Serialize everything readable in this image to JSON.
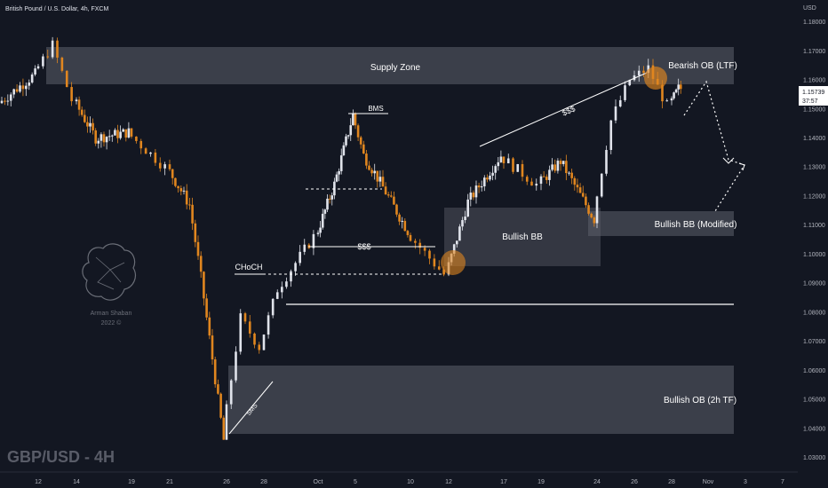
{
  "header": {
    "title": "British Pound / U.S. Dollar, 4h, FXCM",
    "currency": "USD"
  },
  "watermark": {
    "symbol": "GBP/USD - 4H",
    "logo_name": "Arman Shaban",
    "logo_year": "2022 ©"
  },
  "price_label": {
    "price": "1.15739",
    "countdown": "37:57",
    "value": 1.15739
  },
  "colors": {
    "background": "#131722",
    "bull": "#e0e3eb",
    "bear": "#e0861f",
    "zone": "#5d606b",
    "axis_text": "#b2b5be",
    "highlight": "#e0861f"
  },
  "chart_data": {
    "type": "candlestick",
    "title": "British Pound / U.S. Dollar, 4h, FXCM",
    "xlabel": "",
    "ylabel": "",
    "y_range": [
      1.025,
      1.1875
    ],
    "grid": false,
    "y_ticks": [
      "1.18000",
      "1.17000",
      "1.16000",
      "1.15000",
      "1.14000",
      "1.13000",
      "1.12000",
      "1.11000",
      "1.10000",
      "1.09000",
      "1.08000",
      "1.07000",
      "1.06000",
      "1.05000",
      "1.04000",
      "1.03000"
    ],
    "x_ticks": [
      "12",
      "14",
      "19",
      "21",
      "26",
      "28",
      "Oct",
      "5",
      "10",
      "12",
      "17",
      "19",
      "24",
      "26",
      "28",
      "Nov",
      "3",
      "7"
    ],
    "price_path": [
      {
        "date": "Sep 09",
        "price": 1.152
      },
      {
        "date": "Sep 12",
        "price": 1.162
      },
      {
        "date": "Sep 13",
        "price": 1.172
      },
      {
        "date": "Sep 14",
        "price": 1.153
      },
      {
        "date": "Sep 16",
        "price": 1.14
      },
      {
        "date": "Sep 19",
        "price": 1.142
      },
      {
        "date": "Sep 21",
        "price": 1.13
      },
      {
        "date": "Sep 23",
        "price": 1.117
      },
      {
        "date": "Sep 24",
        "price": 1.092
      },
      {
        "date": "Sep 26",
        "price": 1.036
      },
      {
        "date": "Sep 27",
        "price": 1.078
      },
      {
        "date": "Sep 28",
        "price": 1.068
      },
      {
        "date": "Sep 29",
        "price": 1.088
      },
      {
        "date": "Oct 03",
        "price": 1.124
      },
      {
        "date": "Oct 05",
        "price": 1.148
      },
      {
        "date": "Oct 06",
        "price": 1.134
      },
      {
        "date": "Oct 07",
        "price": 1.128
      },
      {
        "date": "Oct 10",
        "price": 1.108
      },
      {
        "date": "Oct 12",
        "price": 1.093
      },
      {
        "date": "Oct 14",
        "price": 1.118
      },
      {
        "date": "Oct 17",
        "price": 1.134
      },
      {
        "date": "Oct 19",
        "price": 1.124
      },
      {
        "date": "Oct 21",
        "price": 1.132
      },
      {
        "date": "Oct 24",
        "price": 1.112
      },
      {
        "date": "Oct 25",
        "price": 1.146
      },
      {
        "date": "Oct 26",
        "price": 1.16
      },
      {
        "date": "Oct 27",
        "price": 1.164
      },
      {
        "date": "Oct 28",
        "price": 1.151
      },
      {
        "date": "Oct 29",
        "price": 1.157
      }
    ],
    "zones": [
      {
        "name": "Supply Zone",
        "from": "Sep 13",
        "to": "end",
        "low": 1.161,
        "high": 1.174
      },
      {
        "name": "Bullish BB",
        "from": "Oct 12",
        "to": "Oct 24",
        "low": 1.096,
        "high": 1.116
      },
      {
        "name": "Bullish BB (Modified)",
        "from": "Oct 24",
        "to": "end",
        "low": 1.107,
        "high": 1.116
      },
      {
        "name": "Bullish OB (2h TF)",
        "from": "Sep 26",
        "to": "end",
        "low": 1.036,
        "high": 1.059
      }
    ],
    "annotations": [
      {
        "text": "Supply Zone"
      },
      {
        "text": "Bearish OB (LTF)"
      },
      {
        "text": "$$$"
      },
      {
        "text": "BMS"
      },
      {
        "text": "$$$"
      },
      {
        "text": "Bullish BB"
      },
      {
        "text": "Bullish BB (Modified)"
      },
      {
        "text": "CHoCH"
      },
      {
        "text": "Bullish OB (2h TF)"
      },
      {
        "text": "SMS"
      }
    ],
    "levels": [
      {
        "price": 1.0815,
        "from": "Sep 29",
        "to": "end"
      }
    ]
  }
}
